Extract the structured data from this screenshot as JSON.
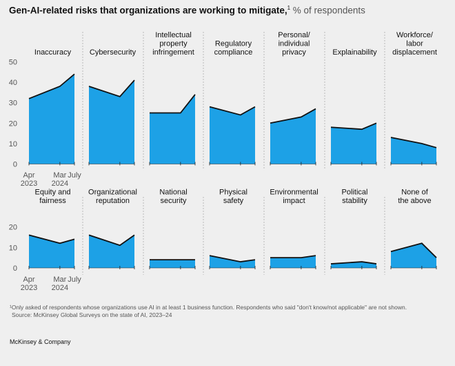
{
  "header": {
    "title_bold": "Gen-AI-related risks that organizations are working to mitigate,",
    "title_sup": "1",
    "title_rest": " % of respondents"
  },
  "chart_data": {
    "type": "area",
    "title": "Gen-AI-related risks that organizations are working to mitigate, % of respondents",
    "x": [
      "Apr 2023",
      "Mar 2024",
      "July 2024"
    ],
    "x_tick_labels": [
      [
        "Apr",
        "2023"
      ],
      [
        "Mar",
        "2024"
      ],
      [
        "July",
        ""
      ]
    ],
    "rows": [
      {
        "ylim": [
          0,
          50
        ],
        "yticks": [
          "50",
          "40",
          "30",
          "20",
          "10",
          "0"
        ],
        "yticks_values": [
          50,
          40,
          30,
          20,
          10,
          0
        ],
        "panels": [
          {
            "name": [
              "Inaccuracy"
            ],
            "values": [
              32,
              38,
              44
            ]
          },
          {
            "name": [
              "Cybersecurity"
            ],
            "values": [
              38,
              33,
              41
            ]
          },
          {
            "name": [
              "Intellectual",
              "property",
              "infringement"
            ],
            "values": [
              25,
              25,
              34
            ]
          },
          {
            "name": [
              "Regulatory",
              "compliance"
            ],
            "values": [
              28,
              24,
              28
            ]
          },
          {
            "name": [
              "Personal/",
              "individual",
              "privacy"
            ],
            "values": [
              20,
              23,
              27
            ]
          },
          {
            "name": [
              "Explainability"
            ],
            "values": [
              18,
              17,
              20
            ]
          },
          {
            "name": [
              "Workforce/",
              "labor",
              "displacement"
            ],
            "values": [
              13,
              10,
              8
            ]
          }
        ]
      },
      {
        "ylim": [
          0,
          20
        ],
        "yticks": [
          "20",
          "10",
          "0"
        ],
        "yticks_values": [
          20,
          10,
          0
        ],
        "panels": [
          {
            "name": [
              "Equity and",
              "fairness"
            ],
            "values": [
              16,
              12,
              14
            ]
          },
          {
            "name": [
              "Organizational",
              "reputation"
            ],
            "values": [
              16,
              11,
              16
            ]
          },
          {
            "name": [
              "National",
              "security"
            ],
            "values": [
              4,
              4,
              4
            ]
          },
          {
            "name": [
              "Physical",
              "safety"
            ],
            "values": [
              6,
              3,
              4
            ]
          },
          {
            "name": [
              "Environmental",
              "impact"
            ],
            "values": [
              5,
              5,
              6
            ]
          },
          {
            "name": [
              "Political",
              "stability"
            ],
            "values": [
              2,
              3,
              2
            ]
          },
          {
            "name": [
              "None of",
              "the above"
            ],
            "values": [
              8,
              12,
              5
            ]
          }
        ]
      }
    ],
    "fill_color": "#1da1e6",
    "line_color": "#111111"
  },
  "footer": {
    "note": "¹Only asked of respondents whose organizations use AI in at least 1 business function. Respondents who said \"don't know/not applicable\" are not shown.",
    "source": "Source: McKinsey Global Surveys on the state of AI, 2023–24",
    "brand": "McKinsey & Company"
  }
}
